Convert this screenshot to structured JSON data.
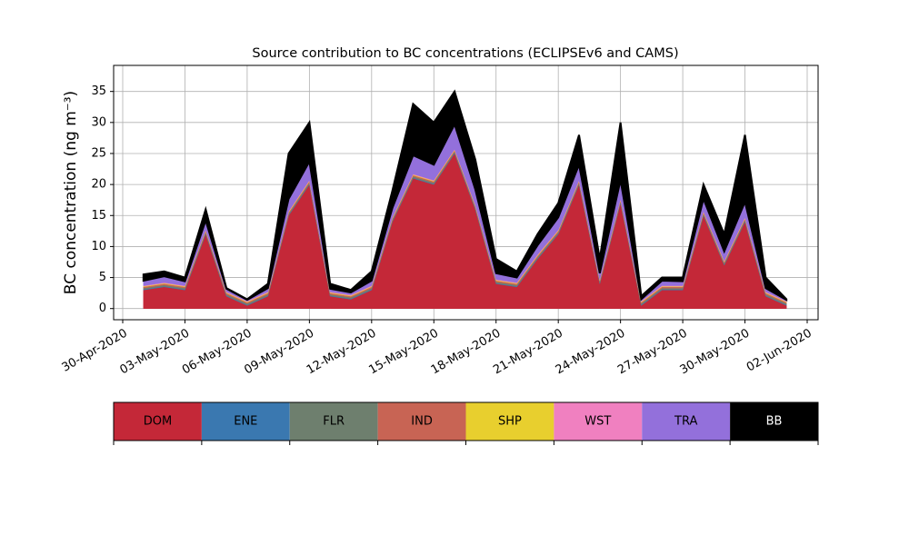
{
  "chart_data": {
    "type": "stacked_area",
    "title": "Source contribution to BC concentrations (ECLIPSEv6 and CAMS)",
    "y_label": "BC concentration (ng m⁻³)",
    "x": [
      "2020-05-01",
      "2020-05-02",
      "2020-05-03",
      "2020-05-04",
      "2020-05-05",
      "2020-05-06",
      "2020-05-07",
      "2020-05-08",
      "2020-05-09",
      "2020-05-10",
      "2020-05-11",
      "2020-05-12",
      "2020-05-13",
      "2020-05-14",
      "2020-05-15",
      "2020-05-16",
      "2020-05-17",
      "2020-05-18",
      "2020-05-19",
      "2020-05-20",
      "2020-05-21",
      "2020-05-22",
      "2020-05-23",
      "2020-05-24",
      "2020-05-25",
      "2020-05-26",
      "2020-05-27",
      "2020-05-28",
      "2020-05-29",
      "2020-05-30",
      "2020-05-31",
      "2020-06-01"
    ],
    "series": [
      {
        "name": "DOM",
        "color": "#c42838",
        "values": [
          3,
          3.5,
          3,
          12,
          2,
          0.5,
          2,
          15,
          20,
          2,
          1.5,
          3,
          14,
          21,
          20,
          25,
          16,
          4,
          3.5,
          8,
          12,
          20,
          4,
          17,
          0.5,
          3,
          3,
          15,
          7,
          14,
          2,
          0.5
        ]
      },
      {
        "name": "ENE",
        "color": "#3a78b0",
        "values": [
          0.1,
          0.1,
          0.1,
          0.1,
          0.1,
          0.1,
          0.1,
          0.1,
          0.1,
          0.1,
          0.1,
          0.1,
          0.1,
          0.1,
          0.1,
          0.1,
          0.1,
          0.1,
          0.1,
          0.1,
          0.1,
          0.1,
          0.1,
          0.1,
          0.1,
          0.1,
          0.1,
          0.1,
          0.1,
          0.1,
          0.1,
          0.1
        ]
      },
      {
        "name": "FLR",
        "color": "#6e7f6e",
        "values": [
          0.2,
          0.2,
          0.2,
          0.2,
          0.2,
          0.2,
          0.2,
          0.2,
          0.2,
          0.2,
          0.2,
          0.2,
          0.2,
          0.2,
          0.2,
          0.2,
          0.2,
          0.2,
          0.2,
          0.2,
          0.2,
          0.2,
          0.2,
          0.2,
          0.2,
          0.2,
          0.2,
          0.2,
          0.2,
          0.2,
          0.2,
          0.2
        ]
      },
      {
        "name": "IND",
        "color": "#c86454",
        "values": [
          0.2,
          0.2,
          0.2,
          0.2,
          0.2,
          0.2,
          0.2,
          0.2,
          0.2,
          0.2,
          0.2,
          0.2,
          0.2,
          0.2,
          0.2,
          0.2,
          0.2,
          0.2,
          0.2,
          0.2,
          0.2,
          0.2,
          0.2,
          0.2,
          0.2,
          0.2,
          0.2,
          0.2,
          0.2,
          0.2,
          0.2,
          0.2
        ]
      },
      {
        "name": "SHP",
        "color": "#e8cf2e",
        "values": [
          0.1,
          0.1,
          0.1,
          0.1,
          0.1,
          0.1,
          0.1,
          0.1,
          0.1,
          0.1,
          0.1,
          0.1,
          0.1,
          0.1,
          0.1,
          0.1,
          0.1,
          0.1,
          0.1,
          0.1,
          0.1,
          0.1,
          0.1,
          0.1,
          0.1,
          0.1,
          0.1,
          0.1,
          0.1,
          0.1,
          0.1,
          0.1
        ]
      },
      {
        "name": "WST",
        "color": "#f080c0",
        "values": [
          0.1,
          0.1,
          0.1,
          0.1,
          0.1,
          0.1,
          0.1,
          0.1,
          0.1,
          0.1,
          0.1,
          0.1,
          0.1,
          0.1,
          0.1,
          0.1,
          0.1,
          0.1,
          0.1,
          0.1,
          0.1,
          0.1,
          0.1,
          0.1,
          0.1,
          0.1,
          0.1,
          0.1,
          0.1,
          0.1,
          0.1,
          0.1
        ]
      },
      {
        "name": "TRA",
        "color": "#9370db",
        "values": [
          0.8,
          1,
          0.7,
          1.5,
          0.5,
          0.2,
          0.6,
          2,
          3,
          0.5,
          0.4,
          0.8,
          1.5,
          3,
          2.5,
          4,
          2.5,
          1,
          0.8,
          1.5,
          2,
          2.5,
          1,
          3,
          0.3,
          0.8,
          0.7,
          2,
          1.5,
          2.5,
          0.6,
          0.2
        ]
      },
      {
        "name": "BB",
        "color": "#000000",
        "values": [
          1.0,
          0.8,
          0.6,
          1.8,
          0.1,
          0.1,
          0.7,
          7.3,
          6.3,
          0.8,
          0.4,
          1.5,
          2.8,
          8.3,
          6.8,
          5.3,
          4.8,
          2.3,
          1.0,
          1.8,
          2.3,
          4.8,
          2.3,
          9.3,
          0.5,
          0.5,
          0.6,
          2.3,
          2.8,
          10.8,
          1.7,
          0.1
        ]
      }
    ],
    "xlim": [
      "2020-04-30",
      "2020-06-02"
    ],
    "xticks": [
      {
        "value": "2020-04-30",
        "label": "30-Apr-2020"
      },
      {
        "value": "2020-05-03",
        "label": "03-May-2020"
      },
      {
        "value": "2020-05-06",
        "label": "06-May-2020"
      },
      {
        "value": "2020-05-09",
        "label": "09-May-2020"
      },
      {
        "value": "2020-05-12",
        "label": "12-May-2020"
      },
      {
        "value": "2020-05-15",
        "label": "15-May-2020"
      },
      {
        "value": "2020-05-18",
        "label": "18-May-2020"
      },
      {
        "value": "2020-05-21",
        "label": "21-May-2020"
      },
      {
        "value": "2020-05-24",
        "label": "24-May-2020"
      },
      {
        "value": "2020-05-27",
        "label": "27-May-2020"
      },
      {
        "value": "2020-05-30",
        "label": "30-May-2020"
      },
      {
        "value": "2020-06-02",
        "label": "02-Jun-2020"
      }
    ],
    "ylim": [
      -1.8,
      39.2
    ],
    "yticks": [
      0,
      5,
      10,
      15,
      20,
      25,
      30,
      35
    ],
    "grid": true,
    "legend": "below"
  }
}
